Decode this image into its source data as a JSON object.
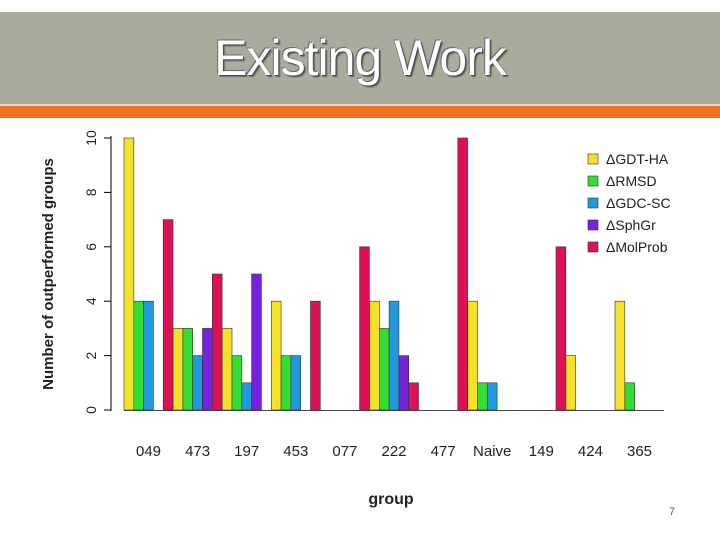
{
  "slide": {
    "title": "Existing Work",
    "number": "7"
  },
  "chart_data": {
    "type": "bar",
    "title": "",
    "xlabel": "group",
    "ylabel": "Number of outperformed groups",
    "ylim": [
      0,
      10
    ],
    "yticks": [
      0,
      2,
      4,
      6,
      8,
      10
    ],
    "legend_position": "top-right",
    "categories": [
      "049",
      "473",
      "197",
      "453",
      "077",
      "222",
      "477",
      "Naive",
      "149",
      "424",
      "365"
    ],
    "series": [
      {
        "name": "ΔGDT-HA",
        "color": "#f5e02a",
        "values": [
          10,
          3,
          3,
          4,
          0,
          4,
          0,
          4,
          0,
          2,
          4
        ]
      },
      {
        "name": "ΔRMSD",
        "color": "#33dd33",
        "values": [
          4,
          3,
          2,
          2,
          0,
          3,
          0,
          1,
          0,
          0,
          1
        ]
      },
      {
        "name": "ΔGDC-SC",
        "color": "#2299dd",
        "values": [
          4,
          2,
          1,
          2,
          0,
          4,
          0,
          1,
          0,
          0,
          0
        ]
      },
      {
        "name": "ΔSphGr",
        "color": "#7722dd",
        "values": [
          0,
          3,
          5,
          0,
          0,
          2,
          0,
          0,
          0,
          0,
          0
        ]
      },
      {
        "name": "ΔMolProb",
        "color": "#dd1155",
        "values": [
          7,
          5,
          0,
          4,
          6,
          1,
          10,
          0,
          6,
          0,
          0
        ]
      }
    ]
  }
}
